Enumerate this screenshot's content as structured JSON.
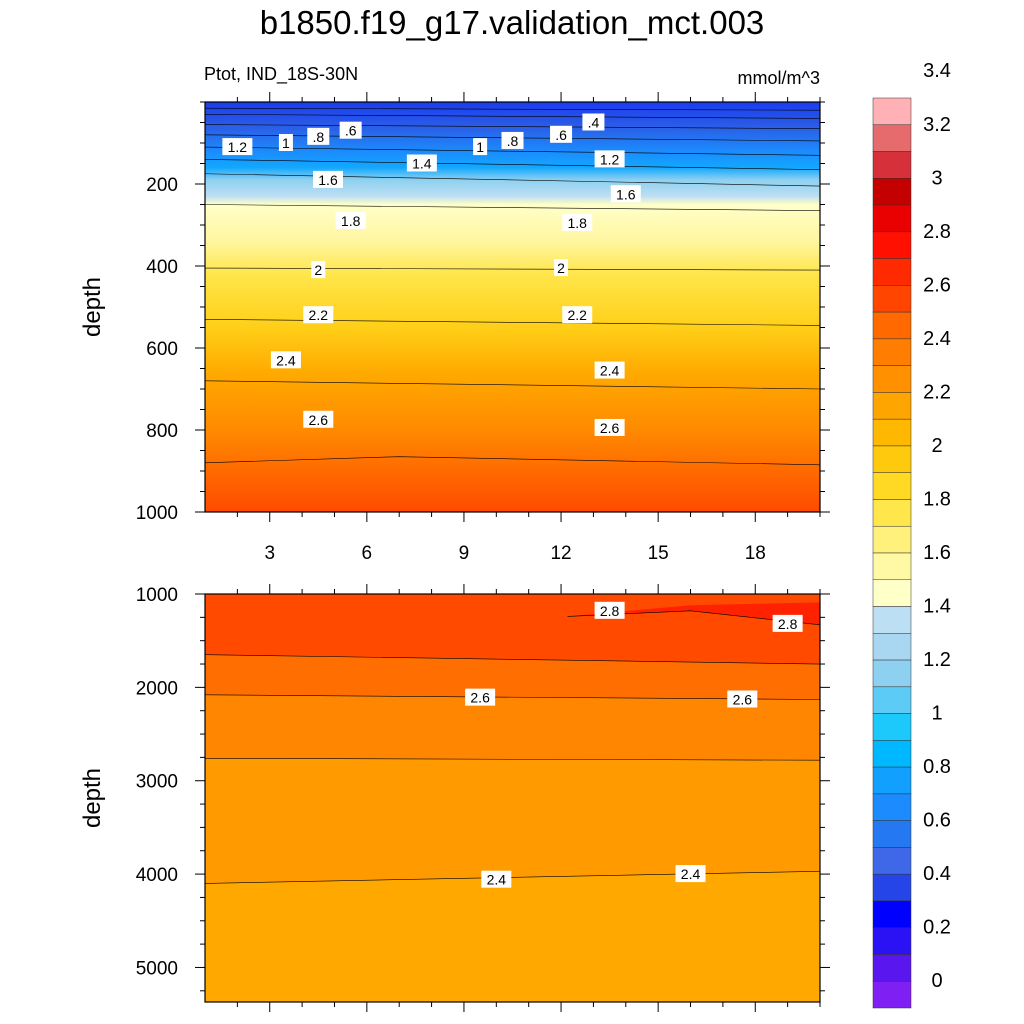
{
  "chart_data": [
    {
      "type": "contour",
      "title": "b1850.f19_g17.validation_mct.003",
      "subtitle_left": "Ptot, IND_18S-30N",
      "subtitle_right": "mmol/m^3",
      "xlabel": "",
      "ylabel": "depth",
      "xlim": [
        1,
        20
      ],
      "ylim": [
        1000,
        0
      ],
      "x_ticks": [
        3,
        6,
        9,
        12,
        15,
        18
      ],
      "y_ticks": [
        200,
        400,
        600,
        800,
        1000
      ],
      "contour_levels": [
        0.4,
        0.6,
        0.8,
        1.0,
        1.2,
        1.4,
        1.6,
        1.8,
        2.0,
        2.2,
        2.4,
        2.6,
        2.8
      ],
      "isolines": [
        {
          "level": 0.4,
          "depth_at_x": [
            [
              1,
              15
            ],
            [
              20,
              20
            ]
          ]
        },
        {
          "level": 0.6,
          "depth_at_x": [
            [
              1,
              30
            ],
            [
              20,
              40
            ]
          ]
        },
        {
          "level": 0.8,
          "depth_at_x": [
            [
              1,
              55
            ],
            [
              20,
              65
            ]
          ]
        },
        {
          "level": 1.0,
          "depth_at_x": [
            [
              1,
              80
            ],
            [
              20,
              95
            ]
          ]
        },
        {
          "level": 1.2,
          "depth_at_x": [
            [
              1,
              110
            ],
            [
              20,
              130
            ]
          ]
        },
        {
          "level": 1.4,
          "depth_at_x": [
            [
              1,
              140
            ],
            [
              20,
              165
            ]
          ]
        },
        {
          "level": 1.6,
          "depth_at_x": [
            [
              1,
              175
            ],
            [
              20,
              205
            ]
          ]
        },
        {
          "level": 1.8,
          "depth_at_x": [
            [
              1,
              250
            ],
            [
              20,
              265
            ]
          ]
        },
        {
          "level": 2.0,
          "depth_at_x": [
            [
              1,
              405
            ],
            [
              20,
              410
            ]
          ]
        },
        {
          "level": 2.2,
          "depth_at_x": [
            [
              1,
              530
            ],
            [
              20,
              545
            ]
          ]
        },
        {
          "level": 2.4,
          "depth_at_x": [
            [
              1,
              680
            ],
            [
              20,
              700
            ]
          ]
        },
        {
          "level": 2.6,
          "depth_at_x": [
            [
              1,
              880
            ],
            [
              7,
              865
            ],
            [
              20,
              885
            ]
          ]
        }
      ],
      "contour_labels": [
        {
          "text": ".4",
          "x": 13.0,
          "y": 50
        },
        {
          "text": ".6",
          "x": 5.5,
          "y": 70
        },
        {
          "text": ".6",
          "x": 12.0,
          "y": 80
        },
        {
          "text": ".8",
          "x": 4.5,
          "y": 85
        },
        {
          "text": ".8",
          "x": 10.5,
          "y": 95
        },
        {
          "text": "1",
          "x": 3.5,
          "y": 100
        },
        {
          "text": "1",
          "x": 9.5,
          "y": 110
        },
        {
          "text": "1.2",
          "x": 2.0,
          "y": 110
        },
        {
          "text": "1.2",
          "x": 13.5,
          "y": 140
        },
        {
          "text": "1.4",
          "x": 7.7,
          "y": 150
        },
        {
          "text": "1.6",
          "x": 4.8,
          "y": 190
        },
        {
          "text": "1.6",
          "x": 14.0,
          "y": 225
        },
        {
          "text": "1.8",
          "x": 5.5,
          "y": 290
        },
        {
          "text": "1.8",
          "x": 12.5,
          "y": 295
        },
        {
          "text": "2",
          "x": 4.5,
          "y": 410
        },
        {
          "text": "2",
          "x": 12.0,
          "y": 405
        },
        {
          "text": "2.2",
          "x": 4.5,
          "y": 520
        },
        {
          "text": "2.2",
          "x": 12.5,
          "y": 520
        },
        {
          "text": "2.4",
          "x": 3.5,
          "y": 630
        },
        {
          "text": "2.4",
          "x": 13.5,
          "y": 655
        },
        {
          "text": "2.6",
          "x": 4.5,
          "y": 775
        },
        {
          "text": "2.6",
          "x": 13.5,
          "y": 795
        }
      ]
    },
    {
      "type": "contour",
      "xlabel": "",
      "ylabel": "depth",
      "xlim": [
        1,
        20
      ],
      "ylim": [
        5370,
        1000
      ],
      "y_ticks": [
        1000,
        2000,
        3000,
        4000,
        5000
      ],
      "contour_levels": [
        2.4,
        2.6,
        2.8
      ],
      "isolines": [
        {
          "level": 2.8,
          "depth_at_x": [
            [
              12.2,
              1240
            ],
            [
              16,
              1180
            ],
            [
              20,
              1330
            ]
          ]
        },
        {
          "level": 2.6,
          "depth_at_x": [
            [
              1,
              1650
            ],
            [
              20,
              1750
            ]
          ]
        },
        {
          "level": 2.6,
          "depth_at_x": [
            [
              1,
              2080
            ],
            [
              20,
              2130
            ]
          ]
        },
        {
          "level": 2.4,
          "depth_at_x": [
            [
              1,
              2760
            ],
            [
              20,
              2780
            ]
          ]
        },
        {
          "level": 2.4,
          "depth_at_x": [
            [
              1,
              4100
            ],
            [
              20,
              3970
            ]
          ]
        }
      ],
      "contour_labels": [
        {
          "text": "2.8",
          "x": 13.5,
          "y": 1180
        },
        {
          "text": "2.8",
          "x": 19.0,
          "y": 1320
        },
        {
          "text": "2.6",
          "x": 9.5,
          "y": 2110
        },
        {
          "text": "2.6",
          "x": 17.6,
          "y": 2130
        },
        {
          "text": "2.4",
          "x": 10.0,
          "y": 4060
        },
        {
          "text": "2.4",
          "x": 16.0,
          "y": 4000
        }
      ]
    }
  ],
  "colorbar": {
    "labels": [
      "0",
      "0.2",
      "0.4",
      "0.6",
      "0.8",
      "1",
      "1.2",
      "1.4",
      "1.6",
      "1.8",
      "2",
      "2.2",
      "2.4",
      "2.6",
      "2.8",
      "3",
      "3.2",
      "3.4"
    ],
    "colors": [
      "#7f1ff3",
      "#5a16ee",
      "#2a12f5",
      "#0000ff",
      "#2545e8",
      "#3f68e8",
      "#2478f2",
      "#1c8bfd",
      "#12a0ff",
      "#00b8ff",
      "#1dc8fb",
      "#5ccbf6",
      "#8ed0f0",
      "#a9d7f1",
      "#bddff3",
      "#ffffc8",
      "#fff9a6",
      "#fff17c",
      "#ffe64b",
      "#ffd923",
      "#ffca0e",
      "#ffb800",
      "#ffa500",
      "#ff9100",
      "#ff7d00",
      "#ff6900",
      "#ff4500",
      "#ff2a00",
      "#ff1000",
      "#e90000",
      "#c40000",
      "#d6303a",
      "#e66b6d",
      "#ffb1b5"
    ]
  }
}
